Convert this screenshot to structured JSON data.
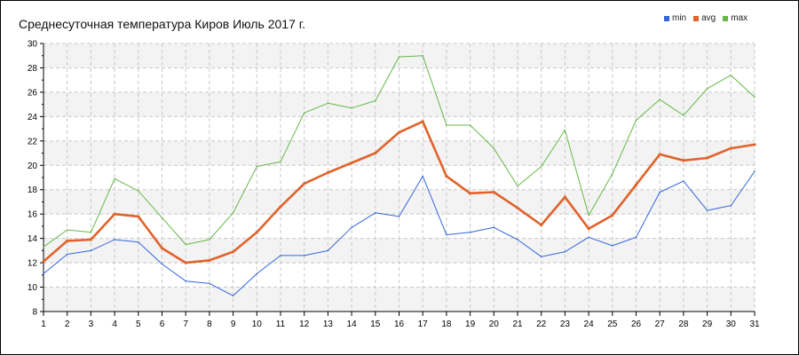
{
  "chart_data": {
    "type": "line",
    "title": "Среднесуточная температура Киров  Июль 2017 г.",
    "xlabel": "",
    "ylabel": "",
    "x": [
      1,
      2,
      3,
      4,
      5,
      6,
      7,
      8,
      9,
      10,
      11,
      12,
      13,
      14,
      15,
      16,
      17,
      18,
      19,
      20,
      21,
      22,
      23,
      24,
      25,
      26,
      27,
      28,
      29,
      30,
      31
    ],
    "xlim": [
      1,
      31
    ],
    "ylim": [
      8,
      30
    ],
    "yticks": [
      8,
      10,
      12,
      14,
      16,
      18,
      20,
      22,
      24,
      26,
      28,
      30
    ],
    "grid": true,
    "legend_position": "top-right",
    "series": [
      {
        "name": "min",
        "color": "#3366dd",
        "values": [
          11.1,
          12.7,
          13.0,
          13.9,
          13.7,
          11.9,
          10.5,
          10.3,
          9.3,
          11.1,
          12.6,
          12.6,
          13.0,
          14.9,
          16.1,
          15.8,
          19.1,
          14.3,
          14.5,
          14.9,
          13.9,
          12.5,
          12.9,
          14.1,
          13.4,
          14.1,
          17.8,
          18.7,
          16.3,
          16.7,
          19.5
        ]
      },
      {
        "name": "avg",
        "color": "#e0632a",
        "values": [
          12.1,
          13.8,
          13.9,
          16.0,
          15.8,
          13.2,
          12.0,
          12.2,
          12.9,
          14.5,
          16.6,
          18.5,
          19.4,
          20.2,
          21.0,
          22.7,
          23.6,
          19.1,
          17.7,
          17.8,
          16.5,
          15.1,
          17.4,
          14.8,
          15.9,
          18.4,
          20.9,
          20.4,
          20.6,
          21.4,
          21.7
        ]
      },
      {
        "name": "max",
        "color": "#66b846",
        "values": [
          13.3,
          14.7,
          14.5,
          18.9,
          17.9,
          15.7,
          13.5,
          13.9,
          16.1,
          19.9,
          20.3,
          24.3,
          25.1,
          24.7,
          25.3,
          28.9,
          29.0,
          23.3,
          23.3,
          21.4,
          18.3,
          19.9,
          22.9,
          15.9,
          19.3,
          23.7,
          25.4,
          24.1,
          26.3,
          27.4,
          25.6
        ]
      }
    ]
  }
}
